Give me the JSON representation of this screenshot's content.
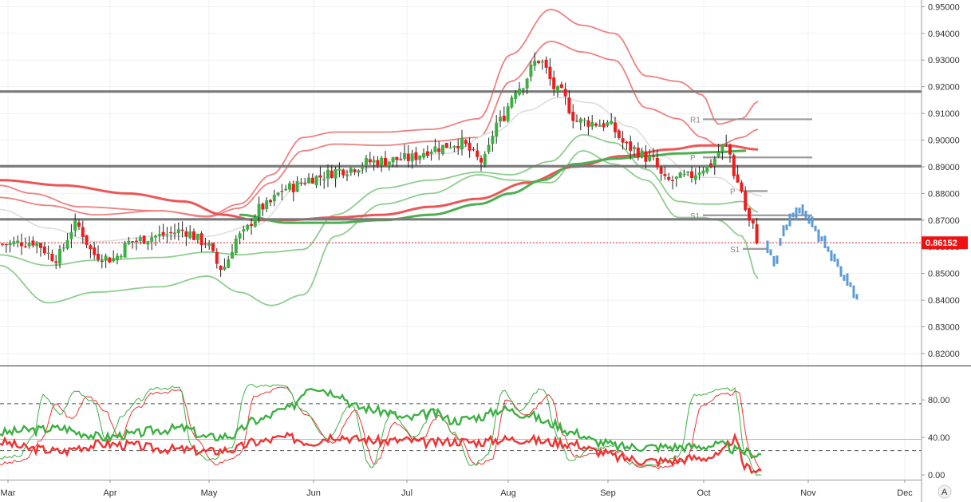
{
  "chart_data": [
    {
      "type": "candlestick",
      "title": "",
      "y_axis_ticks": [
        "0.95000",
        "0.94000",
        "0.93000",
        "0.92000",
        "0.91000",
        "0.90000",
        "0.89000",
        "0.88000",
        "0.87000",
        "0.86000",
        "0.85000",
        "0.84000",
        "0.83000",
        "0.82000"
      ],
      "x_axis_ticks": [
        "Mar",
        "Apr",
        "May",
        "Jun",
        "Jul",
        "Aug",
        "Sep",
        "Oct",
        "Nov",
        "Dec"
      ],
      "ylim": [
        0.8155,
        0.9525
      ],
      "current_price": 0.86152,
      "current_price_label": "0.86152",
      "horizontal_levels": [
        0.9182,
        0.8902,
        0.8703
      ],
      "pivot_labels": [
        {
          "text": "R1",
          "value": 0.9078
        },
        {
          "text": "P",
          "value": 0.8935
        },
        {
          "text": "P",
          "value": 0.8809
        },
        {
          "text": "S1",
          "value": 0.8718
        },
        {
          "text": "S1",
          "value": 0.8592
        }
      ],
      "colors": {
        "up": "#3cb043",
        "down": "#ee1c1c",
        "projection": "#5b9bd5",
        "upper_band": "#f08080",
        "lower_band": "#8fce8f",
        "ma_long": "#ee5555",
        "ma_mid": "#4caf50",
        "levels": "#7a7a7a",
        "price_tag": "#ee1111"
      },
      "key_prices": [
        {
          "date": "Mar",
          "close": 0.861
        },
        {
          "date": "Apr",
          "close": 0.856
        },
        {
          "date": "May",
          "close": 0.857
        },
        {
          "date": "Jun",
          "close": 0.888
        },
        {
          "date": "Jul",
          "close": 0.898
        },
        {
          "date": "Aug",
          "close": 0.92
        },
        {
          "date": "Sep",
          "close": 0.896
        },
        {
          "date": "Oct",
          "close": 0.888
        },
        {
          "date": "Oct (last)",
          "close": 0.8615
        }
      ]
    },
    {
      "type": "line",
      "title": "",
      "y_axis_ticks": [
        "80.00",
        "40.00",
        "0.00"
      ],
      "ylim": [
        -5,
        115
      ],
      "reference_levels": [
        76,
        26
      ],
      "series": [],
      "colors": {
        "stoch_k": "#3cb043",
        "stoch_d": "#ee3333",
        "rsi": "#3cb043",
        "rsi_signal": "#ee3333"
      }
    }
  ],
  "footer": {
    "auto_scale_label": "A"
  }
}
